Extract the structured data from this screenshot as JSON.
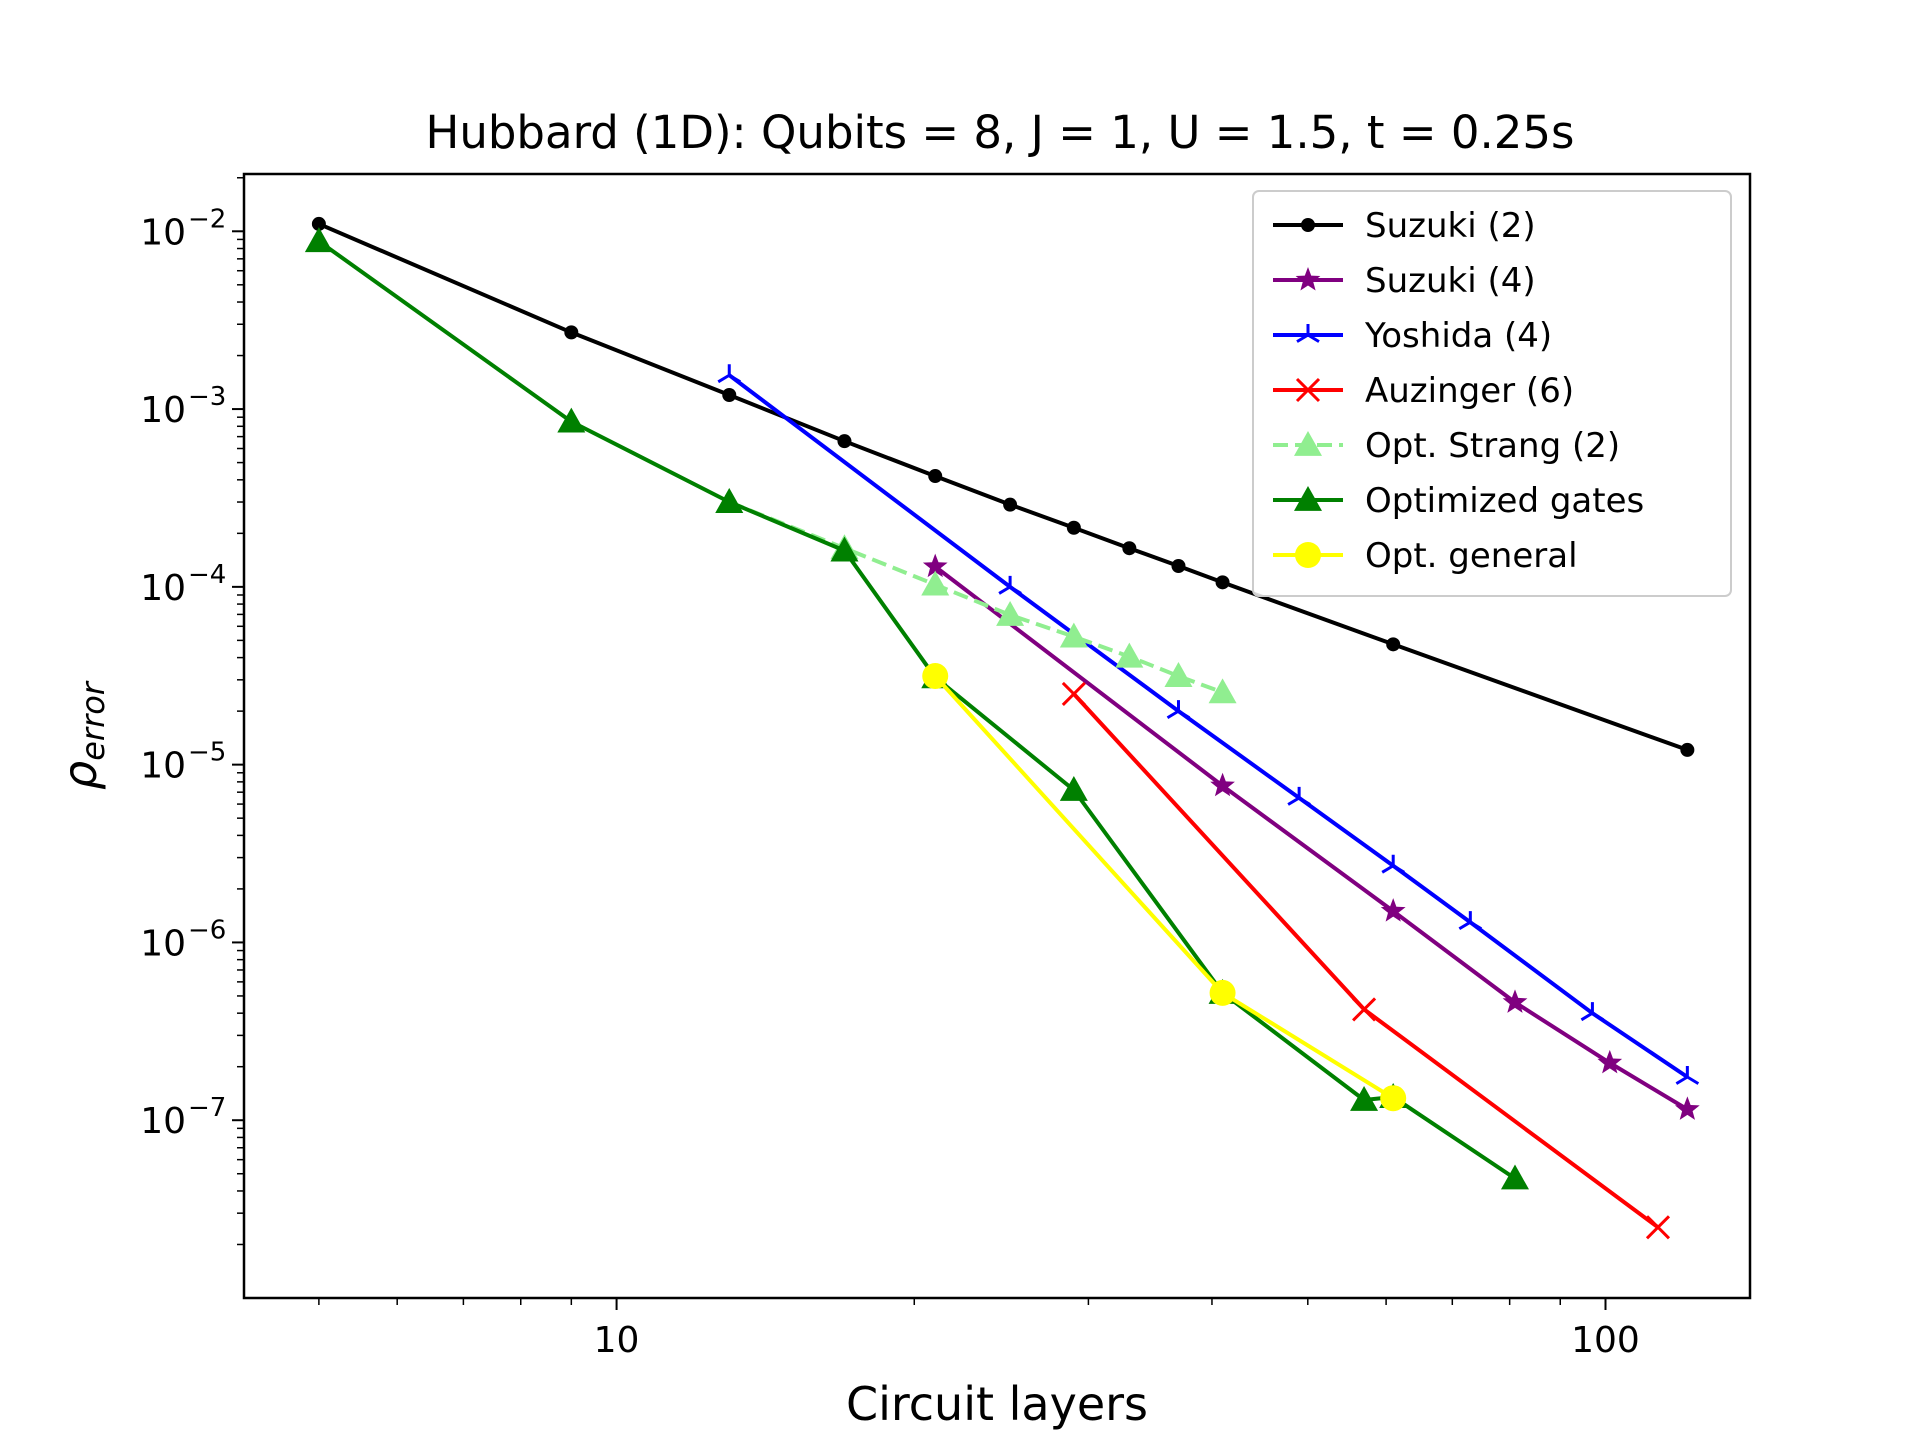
{
  "chart_data": {
    "type": "line",
    "title": "Hubbard (1D): Qubits = 8, J = 1, U = 1.5, t = 0.25s",
    "xlabel": "Circuit layers",
    "ylabel_base": "ρ",
    "ylabel_sub": "error",
    "x_scale": "log",
    "y_scale": "log",
    "xlim": [
      4.2,
      140
    ],
    "ylim": [
      1e-08,
      0.021
    ],
    "x_ticks": [
      {
        "value": 10,
        "label": "10"
      },
      {
        "value": 100,
        "label": "100"
      }
    ],
    "y_ticks": [
      {
        "value": 0.01,
        "base": "10",
        "exp": "−2"
      },
      {
        "value": 0.001,
        "base": "10",
        "exp": "−3"
      },
      {
        "value": 0.0001,
        "base": "10",
        "exp": "−4"
      },
      {
        "value": 1e-05,
        "base": "10",
        "exp": "−5"
      },
      {
        "value": 1e-06,
        "base": "10",
        "exp": "−6"
      },
      {
        "value": 1e-07,
        "base": "10",
        "exp": "−7"
      }
    ],
    "grid": false,
    "legend_position": "top-right",
    "series": [
      {
        "name": "Suzuki (2)",
        "color": "#000000",
        "marker": "dot",
        "dashed": false,
        "x": [
          5,
          9,
          13,
          17,
          21,
          25,
          29,
          33,
          37,
          41,
          61,
          121
        ],
        "y": [
          0.011,
          0.0027,
          0.0012,
          0.00066,
          0.00042,
          0.00029,
          0.000215,
          0.000165,
          0.000131,
          0.000106,
          4.75e-05,
          1.21e-05
        ]
      },
      {
        "name": "Suzuki (4)",
        "color": "#800080",
        "marker": "star",
        "dashed": false,
        "x": [
          21,
          41,
          61,
          81,
          101,
          121
        ],
        "y": [
          0.00013,
          7.6e-06,
          1.5e-06,
          4.6e-07,
          2.1e-07,
          1.15e-07
        ]
      },
      {
        "name": "Yoshida (4)",
        "color": "#0000ff",
        "marker": "tri",
        "dashed": false,
        "x": [
          13,
          25,
          37,
          49,
          61,
          73,
          97,
          121
        ],
        "y": [
          0.00155,
          0.0001,
          2e-05,
          6.5e-06,
          2.7e-06,
          1.3e-06,
          4e-07,
          1.75e-07
        ]
      },
      {
        "name": "Auzinger (6)",
        "color": "#ff0000",
        "marker": "x",
        "dashed": false,
        "x": [
          29,
          57,
          113
        ],
        "y": [
          2.5e-05,
          4.2e-07,
          2.5e-08
        ]
      },
      {
        "name": "Opt. Strang (2)",
        "color": "#90ee90",
        "marker": "triangle",
        "dashed": true,
        "x": [
          13,
          17,
          21,
          25,
          29,
          33,
          37,
          41
        ],
        "y": [
          0.0003,
          0.000165,
          0.000103,
          6.95e-05,
          5.25e-05,
          4.05e-05,
          3.15e-05,
          2.55e-05
        ]
      },
      {
        "name": "Optimized gates",
        "color": "#008000",
        "marker": "triangle",
        "dashed": false,
        "x": [
          5,
          9,
          13,
          17,
          21,
          29,
          41,
          57,
          61,
          81
        ],
        "y": [
          0.0088,
          0.00085,
          0.0003,
          0.00016,
          3.1e-05,
          7.2e-06,
          5.2e-07,
          1.3e-07,
          1.35e-07,
          4.7e-08
        ]
      },
      {
        "name": "Opt. general",
        "color": "#ffff00",
        "marker": "circle",
        "dashed": false,
        "x": [
          21,
          41,
          61
        ],
        "y": [
          3.15e-05,
          5.2e-07,
          1.33e-07
        ]
      }
    ]
  }
}
